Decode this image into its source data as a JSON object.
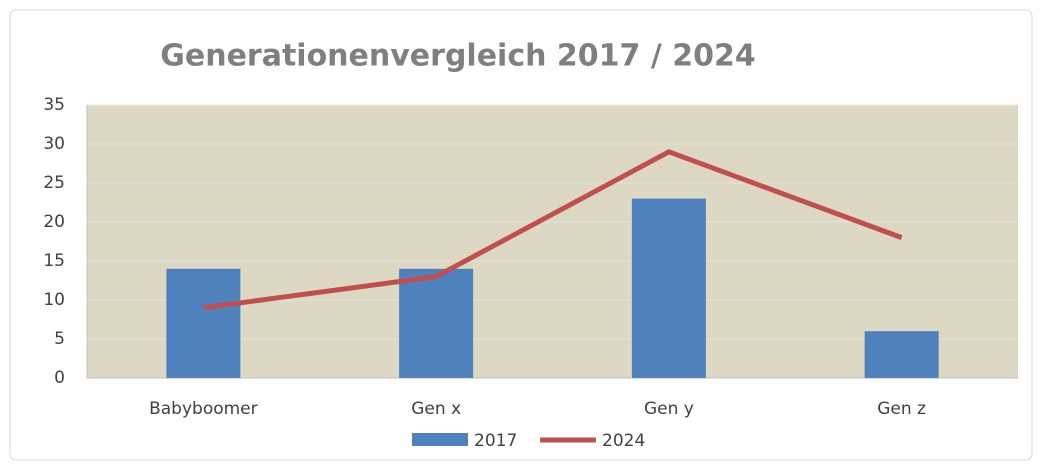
{
  "chart_data": {
    "type": "combo",
    "title": "Generationenvergleich 2017 / 2024",
    "categories": [
      "Babyboomer",
      "Gen x",
      "Gen y",
      "Gen z"
    ],
    "series": [
      {
        "name": "2017",
        "type": "bar",
        "color": "#4f81bd",
        "values": [
          14,
          14,
          23,
          6
        ]
      },
      {
        "name": "2024",
        "type": "line",
        "color": "#c0504d",
        "values": [
          9,
          13,
          29,
          18
        ]
      }
    ],
    "ylim": [
      0,
      35
    ],
    "yticks": [
      0,
      5,
      10,
      15,
      20,
      25,
      30,
      35
    ],
    "grid": true,
    "legend": "bottom"
  }
}
